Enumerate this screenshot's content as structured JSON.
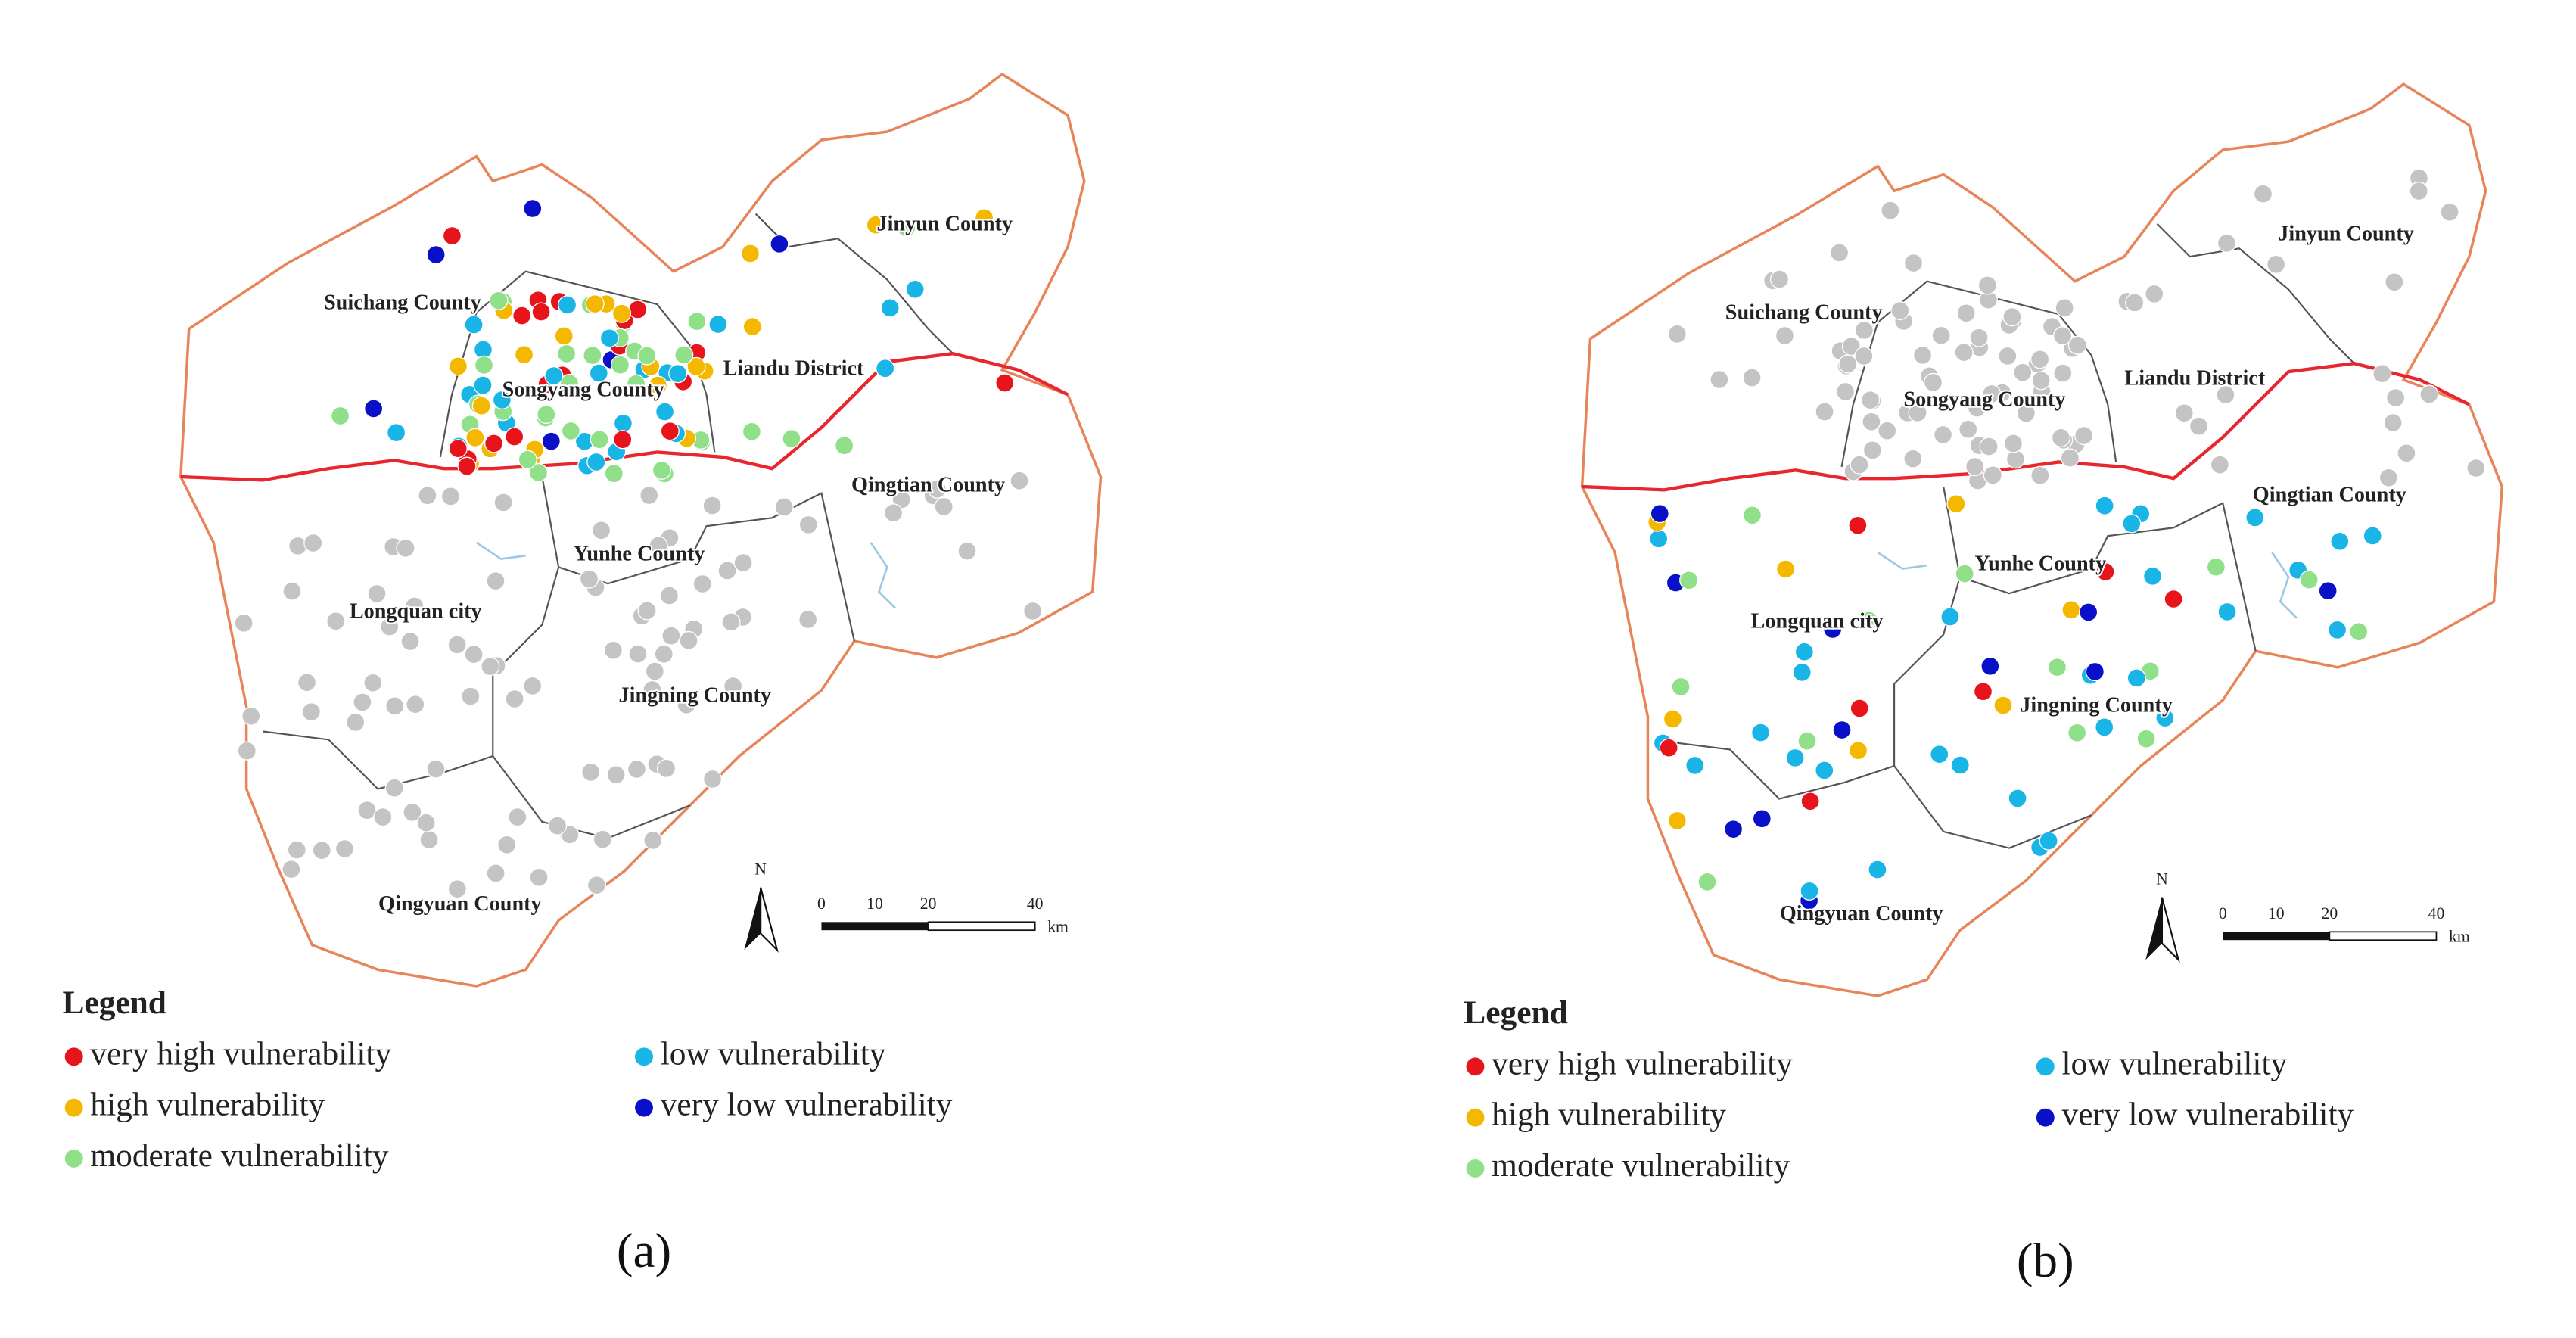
{
  "panels": [
    {
      "caption": "(a)",
      "place_labels": [
        "Suichang County",
        "Songyang County",
        "Liandu District",
        "Jinyun County",
        "Qingtian County",
        "Yunhe County",
        "Longquan city",
        "Jingning County",
        "Qingyuan County"
      ],
      "north": "N",
      "scale": {
        "ticks": [
          0,
          10,
          20,
          40
        ],
        "unit": "km"
      },
      "legend": {
        "title": "Legend",
        "items": [
          {
            "label": "very high vulnerability",
            "color": "#e8141b"
          },
          {
            "label": "high vulnerability",
            "color": "#f5b800"
          },
          {
            "label": "moderate vulnerability",
            "color": "#90e08a"
          },
          {
            "label": "low vulnerability",
            "color": "#19b5e6"
          },
          {
            "label": "very low vulnerability",
            "color": "#0a10c8"
          }
        ]
      }
    },
    {
      "caption": "(b)",
      "place_labels": [
        "Suichang County",
        "Songyang County",
        "Liandu District",
        "Jinyun County",
        "Qingtian County",
        "Yunhe County",
        "Longquan city",
        "Jingning County",
        "Qingyuan County"
      ],
      "north": "N",
      "scale": {
        "ticks": [
          0,
          10,
          20,
          40
        ],
        "unit": "km"
      },
      "legend": {
        "title": "Legend",
        "items": [
          {
            "label": "very high vulnerability",
            "color": "#e8141b"
          },
          {
            "label": "high vulnerability",
            "color": "#f5b800"
          },
          {
            "label": "moderate vulnerability",
            "color": "#90e08a"
          },
          {
            "label": "low vulnerability",
            "color": "#19b5e6"
          },
          {
            "label": "very low vulnerability",
            "color": "#0a10c8"
          }
        ]
      }
    }
  ]
}
